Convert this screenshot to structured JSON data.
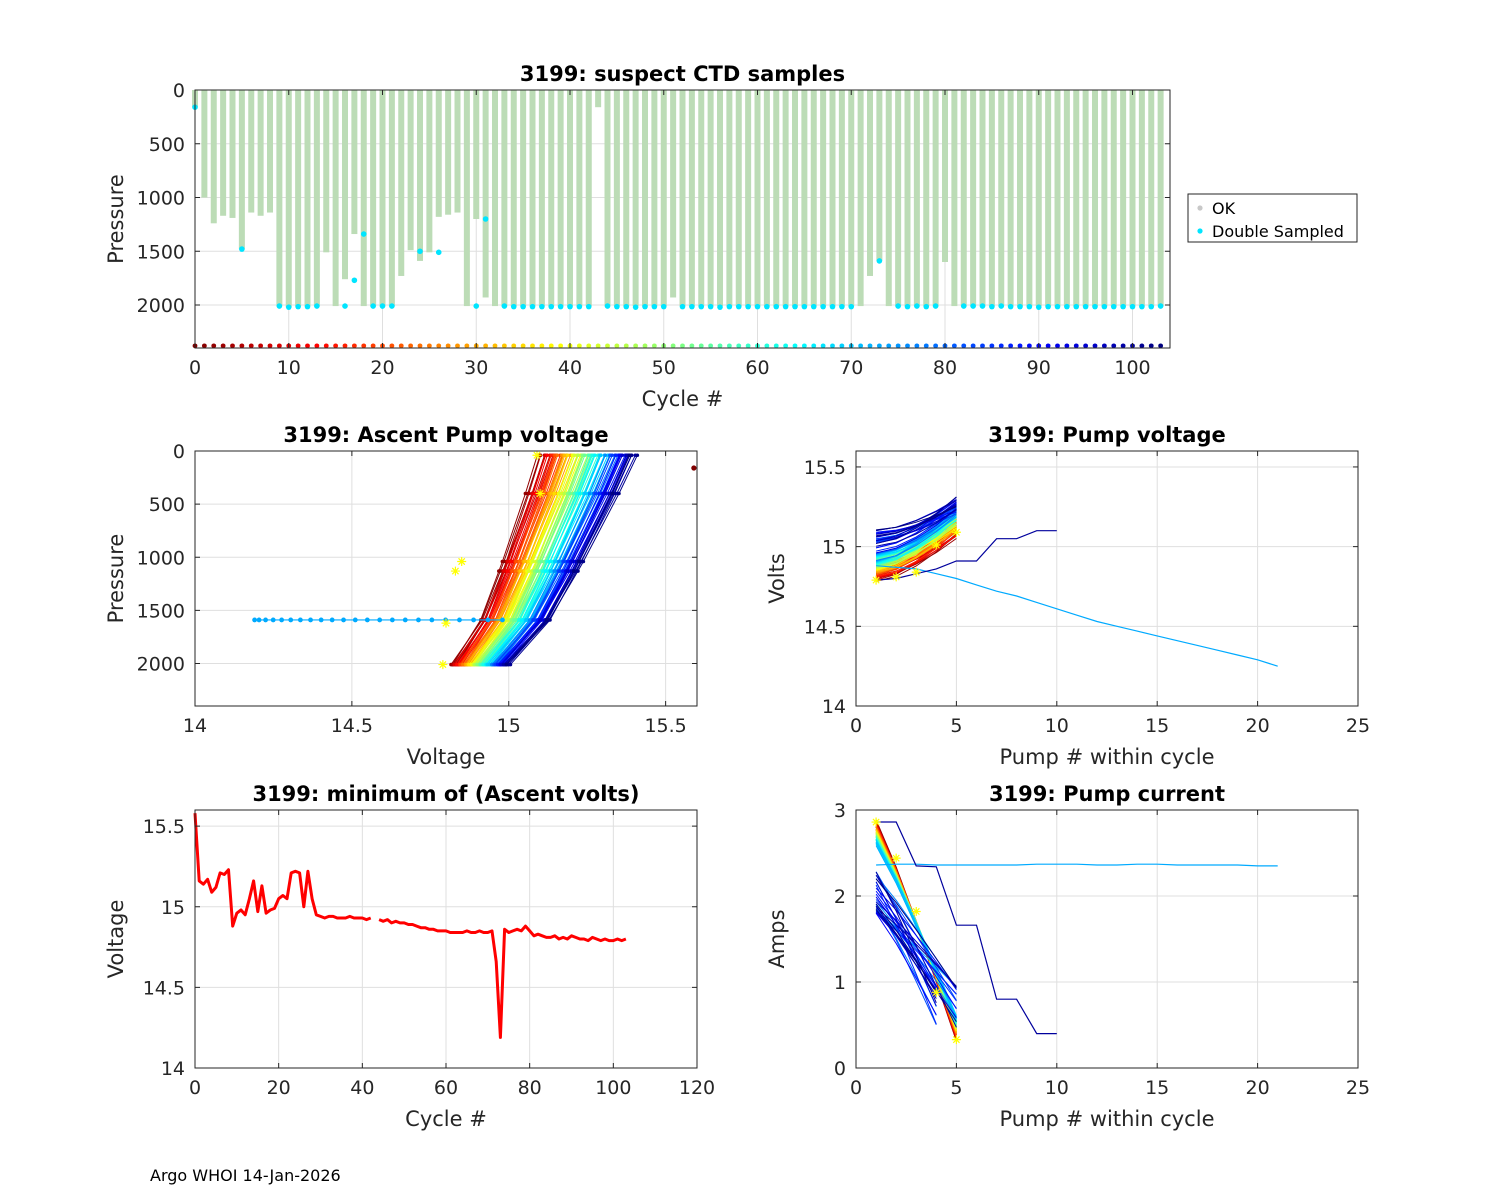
{
  "footer": "Argo WHOI 14-Jan-2026",
  "colors": {
    "ok": "#bcdcb6",
    "double": "#00e5ff",
    "min_line": "#ff0000",
    "highlight": "#ffff00",
    "axis": "#262626",
    "grid": "#dfdfdf"
  },
  "chart_data": [
    {
      "id": "suspect",
      "type": "bar",
      "title": "3199: suspect CTD samples",
      "xlabel": "Cycle #",
      "ylabel": "Pressure",
      "xlim": [
        0,
        104
      ],
      "ylim": [
        0,
        2400
      ],
      "y_reversed": true,
      "xticks": [
        0,
        10,
        20,
        30,
        40,
        50,
        60,
        70,
        80,
        90,
        100
      ],
      "yticks": [
        0,
        500,
        1000,
        1500,
        2000
      ],
      "grid": true,
      "legend": {
        "position": "right",
        "entries": [
          "OK",
          "Double Sampled"
        ]
      },
      "cycles": [
        0,
        1,
        2,
        3,
        4,
        5,
        6,
        7,
        8,
        9,
        10,
        11,
        12,
        13,
        14,
        15,
        16,
        17,
        18,
        19,
        20,
        21,
        22,
        23,
        24,
        25,
        26,
        27,
        28,
        29,
        30,
        31,
        32,
        33,
        34,
        35,
        36,
        37,
        38,
        39,
        40,
        41,
        42,
        43,
        44,
        45,
        46,
        47,
        48,
        49,
        50,
        51,
        52,
        53,
        54,
        55,
        56,
        57,
        58,
        59,
        60,
        61,
        62,
        63,
        64,
        65,
        66,
        67,
        68,
        69,
        70,
        71,
        72,
        73,
        74,
        75,
        76,
        77,
        78,
        79,
        80,
        81,
        82,
        83,
        84,
        85,
        86,
        87,
        88,
        89,
        90,
        91,
        92,
        93,
        94,
        95,
        96,
        97,
        98,
        99,
        100,
        101,
        102,
        103
      ],
      "max_pressure": [
        160,
        1000,
        1240,
        1170,
        1190,
        1480,
        1140,
        1170,
        1140,
        2010,
        2020,
        2010,
        2010,
        2010,
        1510,
        2010,
        1760,
        1340,
        2010,
        2010,
        2010,
        2010,
        1730,
        1490,
        1590,
        1510,
        1180,
        1160,
        1140,
        2010,
        1200,
        1930,
        2010,
        2010,
        2010,
        2010,
        2010,
        2010,
        2010,
        2010,
        2010,
        2010,
        2010,
        160,
        2010,
        2010,
        2010,
        2010,
        2010,
        2010,
        2010,
        1930,
        2010,
        2010,
        2010,
        2010,
        2010,
        2010,
        2010,
        2010,
        2010,
        2010,
        2010,
        2010,
        2010,
        2010,
        2010,
        2010,
        2010,
        2010,
        2010,
        2010,
        1730,
        1590,
        2010,
        2010,
        2010,
        2010,
        2010,
        2010,
        1600,
        2010,
        2010,
        2010,
        2010,
        2010,
        2010,
        2010,
        2010,
        2010,
        2010,
        2010,
        2010,
        2010,
        2010,
        2010,
        2010,
        2010,
        2010,
        2010,
        2010,
        2010,
        2010,
        2010
      ],
      "double_sampled": [
        [
          0,
          160
        ],
        [
          5,
          1480
        ],
        [
          9,
          2010
        ],
        [
          10,
          2020
        ],
        [
          11,
          2015
        ],
        [
          12,
          2015
        ],
        [
          13,
          2010
        ],
        [
          16,
          2010
        ],
        [
          17,
          1770
        ],
        [
          18,
          1340
        ],
        [
          19,
          2010
        ],
        [
          20,
          2010
        ],
        [
          21,
          2010
        ],
        [
          24,
          1500
        ],
        [
          26,
          1510
        ],
        [
          30,
          2010
        ],
        [
          31,
          1200
        ],
        [
          33,
          2010
        ],
        [
          34,
          2015
        ],
        [
          35,
          2015
        ],
        [
          36,
          2015
        ],
        [
          37,
          2015
        ],
        [
          38,
          2015
        ],
        [
          39,
          2015
        ],
        [
          40,
          2015
        ],
        [
          41,
          2015
        ],
        [
          42,
          2015
        ],
        [
          44,
          2010
        ],
        [
          45,
          2015
        ],
        [
          46,
          2015
        ],
        [
          47,
          2020
        ],
        [
          48,
          2015
        ],
        [
          49,
          2015
        ],
        [
          50,
          2015
        ],
        [
          52,
          2015
        ],
        [
          53,
          2015
        ],
        [
          54,
          2015
        ],
        [
          55,
          2015
        ],
        [
          56,
          2020
        ],
        [
          57,
          2015
        ],
        [
          58,
          2015
        ],
        [
          59,
          2015
        ],
        [
          60,
          2015
        ],
        [
          61,
          2015
        ],
        [
          62,
          2015
        ],
        [
          63,
          2015
        ],
        [
          64,
          2015
        ],
        [
          65,
          2015
        ],
        [
          66,
          2015
        ],
        [
          67,
          2015
        ],
        [
          68,
          2015
        ],
        [
          69,
          2015
        ],
        [
          70,
          2015
        ],
        [
          73,
          1590
        ],
        [
          75,
          2010
        ],
        [
          76,
          2015
        ],
        [
          77,
          2010
        ],
        [
          78,
          2015
        ],
        [
          79,
          2010
        ],
        [
          82,
          2010
        ],
        [
          83,
          2010
        ],
        [
          84,
          2010
        ],
        [
          85,
          2015
        ],
        [
          86,
          2010
        ],
        [
          87,
          2015
        ],
        [
          88,
          2015
        ],
        [
          89,
          2015
        ],
        [
          90,
          2020
        ],
        [
          91,
          2015
        ],
        [
          92,
          2015
        ],
        [
          93,
          2015
        ],
        [
          94,
          2015
        ],
        [
          95,
          2015
        ],
        [
          96,
          2015
        ],
        [
          97,
          2015
        ],
        [
          98,
          2015
        ],
        [
          99,
          2015
        ],
        [
          100,
          2015
        ],
        [
          101,
          2015
        ],
        [
          102,
          2015
        ],
        [
          103,
          2010
        ]
      ],
      "bottom_row_pressure": 2380
    },
    {
      "id": "ascent",
      "type": "line",
      "title": "3199: Ascent Pump voltage",
      "xlabel": "Voltage",
      "ylabel": "Pressure",
      "xlim": [
        14,
        15.6
      ],
      "ylim": [
        0,
        2400
      ],
      "y_reversed": true,
      "xticks": [
        14,
        14.5,
        15,
        15.5
      ],
      "yticks": [
        0,
        500,
        1000,
        1500,
        2000
      ],
      "grid": true,
      "n_cycles": 104,
      "profile": {
        "v_bottom_start": 14.82,
        "v_bottom_end": 15.0,
        "v_top_start": 15.1,
        "v_top_end": 15.4
      },
      "outlier_line": {
        "cycle": 73,
        "pressure": 1590,
        "v_start": 14.19,
        "v_end": 14.98,
        "n_points": 23
      },
      "outlier_point": [
        15.59,
        160
      ],
      "star_points": [
        [
          14.79,
          2010
        ],
        [
          14.8,
          1620
        ],
        [
          14.83,
          1130
        ],
        [
          14.85,
          1040
        ],
        [
          15.1,
          400
        ],
        [
          15.09,
          40
        ]
      ]
    },
    {
      "id": "pumpv",
      "type": "line",
      "title": "3199: Pump voltage",
      "xlabel": "Pump # within cycle",
      "ylabel": "Volts",
      "xlim": [
        0,
        25
      ],
      "ylim": [
        14,
        15.6
      ],
      "xticks": [
        0,
        5,
        10,
        15,
        20,
        25
      ],
      "yticks": [
        14,
        14.5,
        15,
        15.5
      ],
      "grid": true,
      "n_cycles": 104,
      "long_series_a": {
        "x": [
          1,
          2,
          3,
          4,
          5,
          6,
          7,
          8,
          9,
          10,
          11,
          12,
          13,
          14,
          15,
          16,
          17,
          18,
          19,
          20,
          21
        ],
        "y": [
          14.88,
          14.87,
          14.86,
          14.83,
          14.8,
          14.76,
          14.72,
          14.69,
          14.65,
          14.61,
          14.57,
          14.53,
          14.5,
          14.47,
          14.44,
          14.41,
          14.38,
          14.35,
          14.32,
          14.29,
          14.25
        ]
      },
      "long_series_b": {
        "x": [
          1,
          2,
          3,
          4,
          5,
          6,
          7,
          8,
          9,
          10
        ],
        "y": [
          14.79,
          14.8,
          14.83,
          14.86,
          14.91,
          14.91,
          15.05,
          15.05,
          15.1,
          15.1
        ]
      },
      "star_points": [
        [
          1,
          14.79
        ],
        [
          2,
          14.81
        ],
        [
          3,
          14.84
        ],
        [
          4,
          15.01
        ],
        [
          5,
          15.09
        ]
      ]
    },
    {
      "id": "minv",
      "type": "line",
      "title": "3199: minimum of (Ascent volts)",
      "xlabel": "Cycle #",
      "ylabel": "Voltage",
      "xlim": [
        0,
        120
      ],
      "ylim": [
        14,
        15.6
      ],
      "xticks": [
        0,
        20,
        40,
        60,
        80,
        100,
        120
      ],
      "yticks": [
        14,
        14.5,
        15,
        15.5
      ],
      "grid": true,
      "segments": [
        {
          "x": [
            0,
            1,
            2,
            3,
            4,
            5,
            6,
            7,
            8,
            9,
            10,
            11,
            12,
            13,
            14,
            15,
            16,
            17,
            18,
            19,
            20,
            21,
            22,
            23,
            24,
            25,
            26,
            27,
            28,
            29,
            30,
            31,
            32,
            33,
            34,
            35,
            36,
            37,
            38,
            39,
            40,
            41,
            42
          ],
          "y": [
            15.58,
            15.16,
            15.14,
            15.17,
            15.09,
            15.12,
            15.21,
            15.2,
            15.23,
            14.88,
            14.96,
            14.98,
            14.95,
            15.05,
            15.16,
            14.97,
            15.13,
            14.96,
            14.98,
            14.99,
            15.05,
            15.07,
            15.05,
            15.21,
            15.22,
            15.21,
            15.0,
            15.22,
            15.05,
            14.95,
            14.94,
            14.93,
            14.94,
            14.94,
            14.93,
            14.93,
            14.93,
            14.94,
            14.93,
            14.93,
            14.93,
            14.92,
            14.93
          ]
        },
        {
          "x": [
            44,
            45,
            46,
            47,
            48,
            49,
            50,
            51,
            52,
            53,
            54,
            55,
            56,
            57,
            58,
            59,
            60,
            61,
            62,
            63,
            64,
            65,
            66,
            67,
            68,
            69,
            70,
            71,
            72,
            73,
            74,
            75,
            76,
            77,
            78,
            79,
            80,
            81,
            82,
            83,
            84,
            85,
            86,
            87,
            88,
            89,
            90,
            91,
            92,
            93,
            94,
            95,
            96,
            97,
            98,
            99,
            100,
            101,
            102,
            103
          ],
          "y": [
            14.92,
            14.91,
            14.92,
            14.9,
            14.91,
            14.9,
            14.9,
            14.89,
            14.89,
            14.88,
            14.87,
            14.87,
            14.86,
            14.86,
            14.85,
            14.85,
            14.85,
            14.84,
            14.84,
            14.84,
            14.84,
            14.85,
            14.84,
            14.84,
            14.85,
            14.84,
            14.84,
            14.85,
            14.66,
            14.19,
            14.86,
            14.84,
            14.85,
            14.86,
            14.85,
            14.88,
            14.85,
            14.82,
            14.83,
            14.82,
            14.81,
            14.81,
            14.82,
            14.8,
            14.81,
            14.8,
            14.82,
            14.81,
            14.8,
            14.8,
            14.79,
            14.81,
            14.8,
            14.79,
            14.8,
            14.79,
            14.79,
            14.8,
            14.79,
            14.8
          ]
        }
      ]
    },
    {
      "id": "pumpc",
      "type": "line",
      "title": "3199: Pump current",
      "xlabel": "Pump # within cycle",
      "ylabel": "Amps",
      "xlim": [
        0,
        25
      ],
      "ylim": [
        0,
        3
      ],
      "xticks": [
        0,
        5,
        10,
        15,
        20,
        25
      ],
      "yticks": [
        0,
        1,
        2,
        3
      ],
      "grid": true,
      "n_cycles": 104,
      "long_series_a": {
        "x": [
          1,
          2,
          3,
          4,
          5,
          6,
          7,
          8,
          9,
          10,
          11,
          12,
          13,
          14,
          15,
          16,
          17,
          18,
          19,
          20,
          21
        ],
        "y": [
          2.36,
          2.37,
          2.37,
          2.36,
          2.36,
          2.36,
          2.36,
          2.36,
          2.37,
          2.37,
          2.37,
          2.36,
          2.36,
          2.37,
          2.37,
          2.36,
          2.36,
          2.36,
          2.36,
          2.35,
          2.35
        ]
      },
      "long_series_b": {
        "x": [
          1,
          2,
          3,
          4,
          5,
          6,
          7,
          8,
          9,
          10
        ],
        "y": [
          2.86,
          2.86,
          2.35,
          2.34,
          1.66,
          1.66,
          0.8,
          0.8,
          0.4,
          0.4
        ]
      },
      "star_points": [
        [
          1,
          2.86
        ],
        [
          2,
          2.44
        ],
        [
          3,
          1.82
        ],
        [
          4,
          0.88
        ],
        [
          5,
          0.33
        ]
      ]
    }
  ]
}
